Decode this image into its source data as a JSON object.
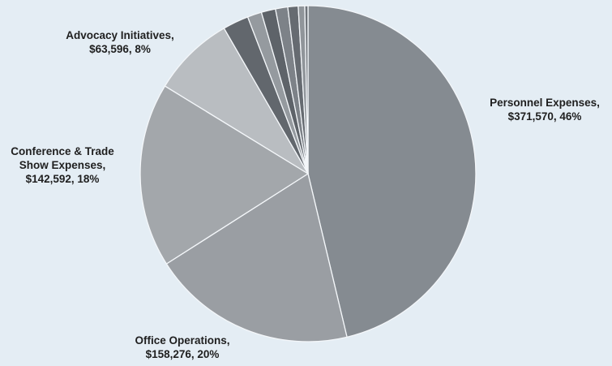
{
  "chart_data": {
    "type": "pie",
    "title": "",
    "start": "12 o'clock, clockwise",
    "legend": "none (data labels on chart)",
    "slices": [
      {
        "label": "Personnel Expenses",
        "value": 371570,
        "percent": "46%",
        "display": "Personnel Expenses,\n$371,570, 46%",
        "color": "#858b91"
      },
      {
        "label": "Office Operations",
        "value": 158276,
        "percent": "20%",
        "display": "Office Operations,\n$158,276, 20%",
        "color": "#9a9ea3"
      },
      {
        "label": "Conference & Trade Show Expenses",
        "value": 142592,
        "percent": "18%",
        "display": "Conference & Trade\nShow Expenses,\n$142,592, 18%",
        "color": "#a3a7ab"
      },
      {
        "label": "Advocacy Initiatives",
        "value": 63596,
        "percent": "8%",
        "display": "Advocacy Initiatives,\n$63,596, 8%",
        "color": "#b9bdc1"
      },
      {
        "label": "",
        "value": 20000,
        "percent": "",
        "display": "",
        "color": "#62676d"
      },
      {
        "label": "",
        "value": 11000,
        "percent": "",
        "display": "",
        "color": "#959a9f"
      },
      {
        "label": "",
        "value": 11000,
        "percent": "",
        "display": "",
        "color": "#5e6369"
      },
      {
        "label": "",
        "value": 9500,
        "percent": "",
        "display": "",
        "color": "#7d8288"
      },
      {
        "label": "",
        "value": 8000,
        "percent": "",
        "display": "",
        "color": "#666b71"
      },
      {
        "label": "",
        "value": 5000,
        "percent": "",
        "display": "",
        "color": "#90959a"
      },
      {
        "label": "",
        "value": 2500,
        "percent": "",
        "display": "",
        "color": "#6f747a"
      }
    ]
  }
}
